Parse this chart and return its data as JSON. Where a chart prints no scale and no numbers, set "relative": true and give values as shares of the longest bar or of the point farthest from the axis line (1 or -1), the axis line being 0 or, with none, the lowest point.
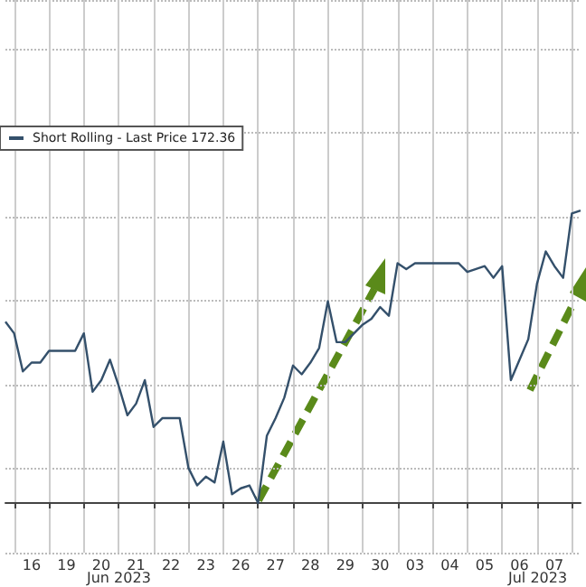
{
  "chart_data": {
    "type": "line",
    "relative": true,
    "grid": true,
    "legend": "top left",
    "marker": "none",
    "categories": [
      null,
      null,
      null,
      "16",
      null,
      null,
      null,
      "19",
      null,
      null,
      null,
      "20",
      null,
      null,
      null,
      "21",
      null,
      null,
      null,
      "22",
      null,
      null,
      null,
      "23",
      null,
      null,
      null,
      "26",
      null,
      null,
      null,
      "27",
      null,
      null,
      null,
      "28",
      null,
      null,
      null,
      "29",
      null,
      null,
      null,
      "30",
      null,
      null,
      null,
      "03",
      null,
      null,
      null,
      "04",
      null,
      null,
      null,
      "05",
      null,
      null,
      null,
      "06",
      null,
      null,
      null,
      "07",
      null,
      null,
      null
    ],
    "annotations": [
      "Jun 2023",
      "Jul 2023"
    ],
    "series": [
      {
        "name": "Short Rolling - Last Price 172.36",
        "color": "#34506b",
        "values": [
          0.62,
          0.58,
          0.45,
          0.48,
          0.48,
          0.52,
          0.52,
          0.52,
          0.52,
          0.58,
          0.38,
          0.42,
          0.49,
          0.4,
          0.3,
          0.34,
          0.42,
          0.26,
          0.29,
          0.29,
          0.29,
          0.12,
          0.06,
          0.09,
          0.07,
          0.21,
          0.03,
          0.05,
          0.06,
          0,
          0.23,
          0.29,
          0.36,
          0.47,
          0.44,
          0.48,
          0.53,
          0.69,
          0.55,
          0.55,
          0.58,
          0.61,
          0.63,
          0.67,
          0.64,
          0.82,
          0.8,
          0.82,
          0.82,
          0.82,
          0.82,
          0.82,
          0.82,
          0.79,
          0.8,
          0.81,
          0.77,
          0.81,
          0.42,
          0.49,
          0.56,
          0.75,
          0.86,
          0.81,
          0.77,
          0.99,
          1
        ]
      }
    ]
  }
}
